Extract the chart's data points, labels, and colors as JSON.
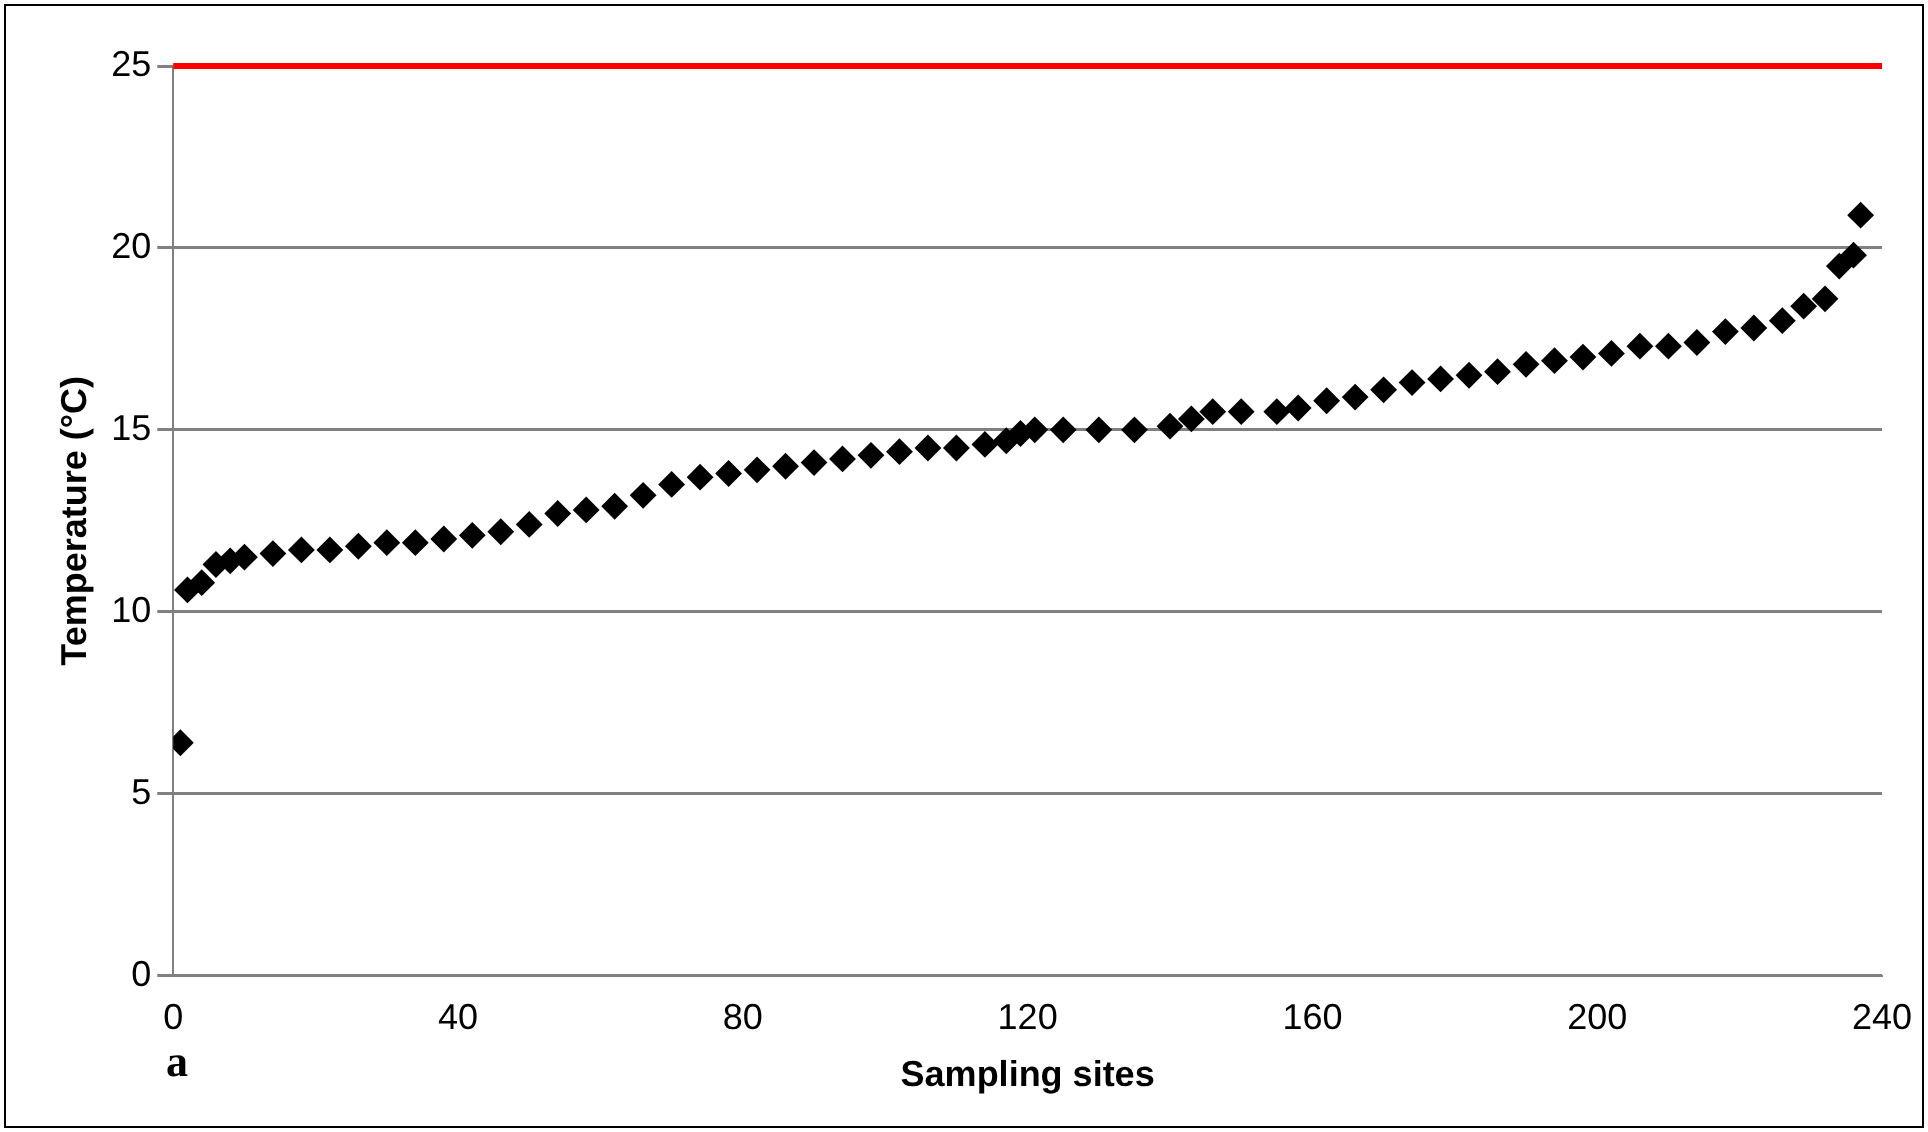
{
  "chart_data": {
    "type": "scatter",
    "xlabel": "Sampling sites",
    "ylabel": "Temperature (°C)",
    "x": [
      1,
      2,
      4,
      6,
      8,
      10,
      14,
      18,
      22,
      26,
      30,
      34,
      38,
      42,
      46,
      50,
      54,
      58,
      62,
      66,
      70,
      74,
      78,
      82,
      86,
      90,
      94,
      98,
      102,
      106,
      110,
      114,
      117,
      119,
      121,
      125,
      130,
      135,
      140,
      143,
      146,
      150,
      155,
      158,
      162,
      166,
      170,
      174,
      178,
      182,
      186,
      190,
      194,
      198,
      202,
      206,
      210,
      214,
      218,
      222,
      226,
      229,
      232,
      234,
      236,
      237
    ],
    "series": [
      {
        "color": "#000000",
        "values": [
          6.4,
          10.6,
          10.8,
          11.3,
          11.4,
          11.5,
          11.6,
          11.7,
          11.7,
          11.8,
          11.9,
          11.9,
          12.0,
          12.1,
          12.2,
          12.4,
          12.7,
          12.8,
          12.9,
          13.2,
          13.5,
          13.7,
          13.8,
          13.9,
          14.0,
          14.1,
          14.2,
          14.3,
          14.4,
          14.5,
          14.5,
          14.6,
          14.7,
          14.9,
          15.0,
          15.0,
          15.0,
          15.0,
          15.1,
          15.3,
          15.5,
          15.5,
          15.5,
          15.6,
          15.8,
          15.9,
          16.1,
          16.3,
          16.4,
          16.5,
          16.6,
          16.8,
          16.9,
          17.0,
          17.1,
          17.3,
          17.3,
          17.4,
          17.7,
          17.8,
          18.0,
          18.4,
          18.6,
          19.5,
          19.8,
          20.9
        ]
      }
    ],
    "xlim": [
      0,
      240
    ],
    "xticks": [
      0,
      40,
      80,
      120,
      160,
      200,
      240
    ],
    "ylim": [
      0,
      25
    ],
    "yticks": [
      0,
      5,
      10,
      15,
      20,
      25
    ],
    "grid": "y",
    "marker": "diamond",
    "legend": false,
    "ref_lines": [
      {
        "axis": "y",
        "value": 25,
        "color": "#ff0000"
      }
    ],
    "annotations": [
      "a"
    ]
  }
}
